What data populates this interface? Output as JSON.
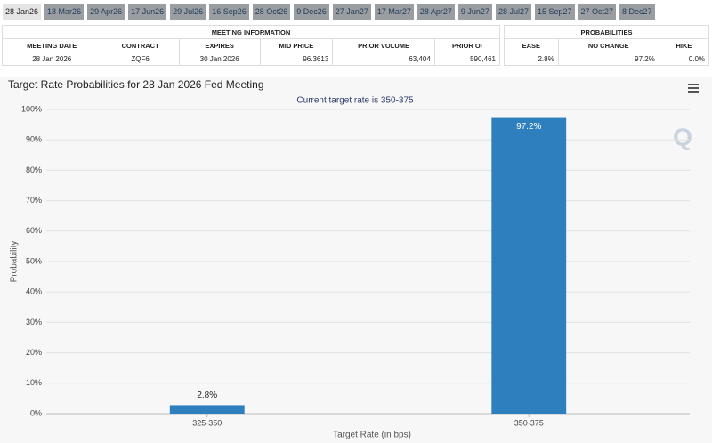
{
  "tabs": [
    "28 Jan26",
    "18 Mar26",
    "29 Apr26",
    "17 Jun26",
    "29 Jul26",
    "16 Sep26",
    "28 Oct26",
    "9 Dec26",
    "27 Jan27",
    "17 Mar27",
    "28 Apr27",
    "9 Jun27",
    "28 Jul27",
    "15 Sep27",
    "27 Oct27",
    "8 Dec27"
  ],
  "meeting_table": {
    "title": "MEETING INFORMATION",
    "headers": [
      "MEETING DATE",
      "CONTRACT",
      "EXPIRES",
      "MID PRICE",
      "PRIOR VOLUME",
      "PRIOR OI"
    ],
    "row": [
      "28 Jan 2026",
      "ZQF6",
      "30 Jan 2026",
      "96.3613",
      "63,404",
      "590,461"
    ]
  },
  "probabilities_table": {
    "title": "PROBABILITIES",
    "headers": [
      "EASE",
      "NO CHANGE",
      "HIKE"
    ],
    "row": [
      "2.8%",
      "97.2%",
      "0.0%"
    ]
  },
  "chart_data": {
    "type": "bar",
    "title": "Target Rate Probabilities for 28 Jan 2026 Fed Meeting",
    "subtitle": "Current target rate is 350-375",
    "x_label": "Target Rate (in bps)",
    "y_label": "Probability",
    "categories": [
      "325-350",
      "350-375"
    ],
    "values": [
      2.8,
      97.2
    ],
    "value_labels": [
      "2.8%",
      "97.2%"
    ],
    "color": "#2d7fbd",
    "ylim": [
      0,
      100
    ],
    "yticks": [
      {
        "value": 0,
        "label": "0%"
      },
      {
        "value": 10,
        "label": "10%"
      },
      {
        "value": 20,
        "label": "20%"
      },
      {
        "value": 30,
        "label": "30%"
      },
      {
        "value": 40,
        "label": "40%"
      },
      {
        "value": 50,
        "label": "50%"
      },
      {
        "value": 60,
        "label": "60%"
      },
      {
        "value": 70,
        "label": "70%"
      },
      {
        "value": 80,
        "label": "80%"
      },
      {
        "value": 90,
        "label": "90%"
      },
      {
        "value": 100,
        "label": "100%"
      }
    ],
    "grid": true
  }
}
